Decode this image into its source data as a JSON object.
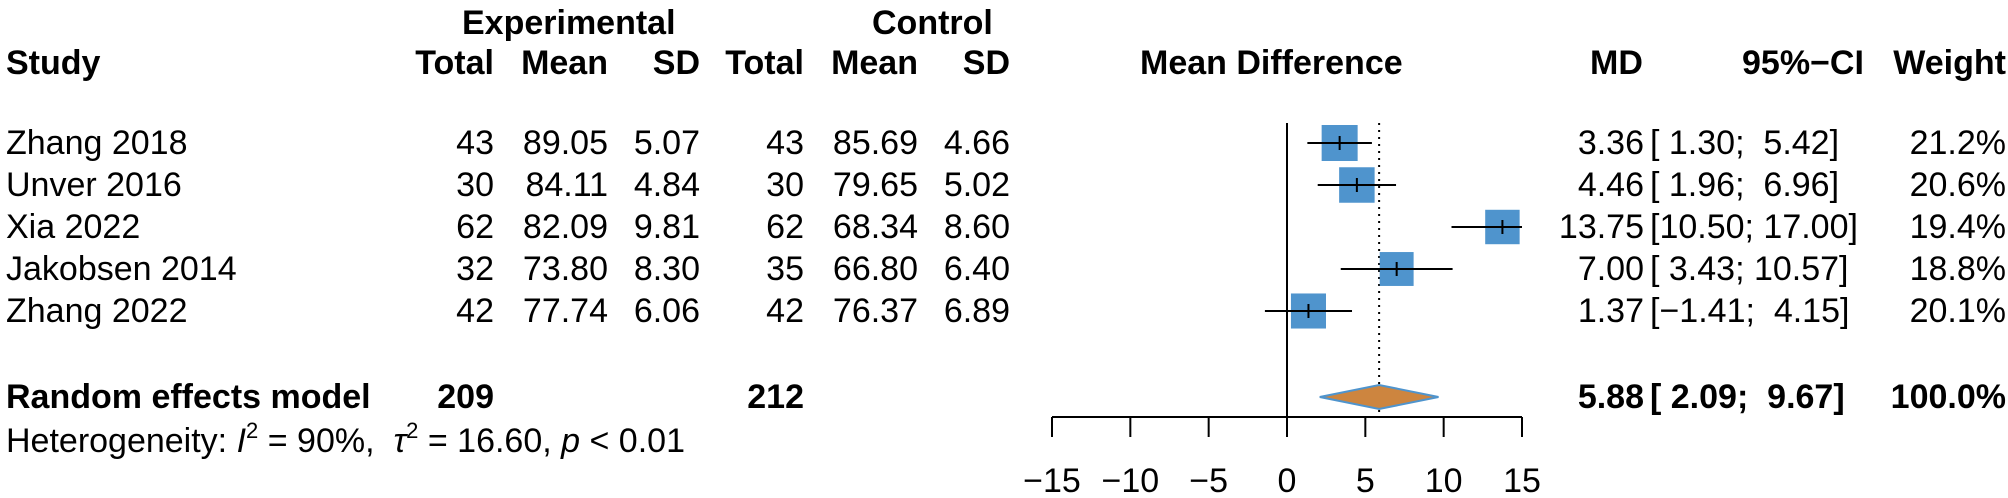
{
  "header": {
    "group_experimental": "Experimental",
    "group_control": "Control",
    "study": "Study",
    "total": "Total",
    "mean": "Mean",
    "sd": "SD",
    "mean_difference": "Mean Difference",
    "md": "MD",
    "ci": "95%−CI",
    "weight": "Weight"
  },
  "studies": [
    {
      "name": "Zhang 2018",
      "e_total": "43",
      "e_mean": "89.05",
      "e_sd": "5.07",
      "c_total": "43",
      "c_mean": "85.69",
      "c_sd": "4.66",
      "md": "3.36",
      "ci": "[ 1.30;  5.42]",
      "weight": "21.2%"
    },
    {
      "name": "Unver 2016",
      "e_total": "30",
      "e_mean": "84.11",
      "e_sd": "4.84",
      "c_total": "30",
      "c_mean": "79.65",
      "c_sd": "5.02",
      "md": "4.46",
      "ci": "[ 1.96;  6.96]",
      "weight": "20.6%"
    },
    {
      "name": "Xia 2022",
      "e_total": "62",
      "e_mean": "82.09",
      "e_sd": "9.81",
      "c_total": "62",
      "c_mean": "68.34",
      "c_sd": "8.60",
      "md": "13.75",
      "ci": "[10.50; 17.00]",
      "weight": "19.4%"
    },
    {
      "name": "Jakobsen 2014",
      "e_total": "32",
      "e_mean": "73.80",
      "e_sd": "8.30",
      "c_total": "35",
      "c_mean": "66.80",
      "c_sd": "6.40",
      "md": "7.00",
      "ci": "[ 3.43; 10.57]",
      "weight": "18.8%"
    },
    {
      "name": "Zhang 2022",
      "e_total": "42",
      "e_mean": "77.74",
      "e_sd": "6.06",
      "c_total": "42",
      "c_mean": "76.37",
      "c_sd": "6.89",
      "md": "1.37",
      "ci": "[−1.41;  4.15]",
      "weight": "20.1%"
    }
  ],
  "summary": {
    "label": "Random effects model",
    "e_total": "209",
    "c_total": "212",
    "md": "5.88",
    "ci": "[ 2.09;  9.67]",
    "weight": "100.0%"
  },
  "heterogeneity": {
    "prefix": "Heterogeneity: ",
    "i2_symbol": "I",
    "i2_sup": "2",
    "i2_value": " = 90%,  ",
    "tau_symbol": "τ",
    "tau_sup": "2",
    "tau_value": " = 16.60, ",
    "p_symbol": "p",
    "p_value": " < 0.01"
  },
  "chart_data": {
    "type": "forest",
    "xlim": [
      -15,
      15
    ],
    "x_ticks": [
      -15,
      -10,
      -5,
      0,
      5,
      10,
      15
    ],
    "x_tick_labels": [
      "−15",
      "−10",
      "−5",
      "0",
      "5",
      "10",
      "15"
    ],
    "reference_line": 0,
    "summary_line": 5.88,
    "colors": {
      "box": "#4f94cd",
      "diamond": "#cd853f",
      "diamond_stroke": "#4f94cd"
    },
    "studies": [
      {
        "md": 3.36,
        "lower": 1.3,
        "upper": 5.42,
        "weight": 21.2
      },
      {
        "md": 4.46,
        "lower": 1.96,
        "upper": 6.96,
        "weight": 20.6
      },
      {
        "md": 13.75,
        "lower": 10.5,
        "upper": 17.0,
        "weight": 19.4
      },
      {
        "md": 7.0,
        "lower": 3.43,
        "upper": 10.57,
        "weight": 18.8
      },
      {
        "md": 1.37,
        "lower": -1.41,
        "upper": 4.15,
        "weight": 20.1
      }
    ],
    "pooled": {
      "md": 5.88,
      "lower": 2.09,
      "upper": 9.67
    }
  }
}
